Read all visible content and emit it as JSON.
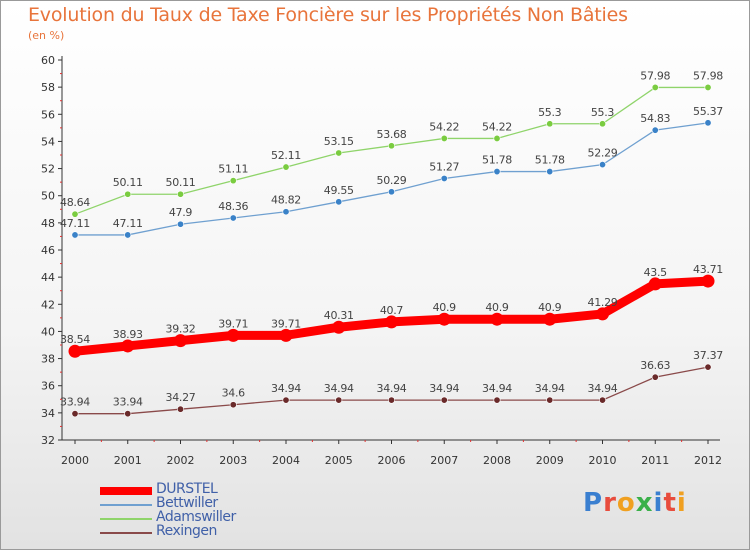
{
  "title": "Evolution du Taux de Taxe Foncière sur les Propriétés Non Bâties",
  "subtitle": "(en %)",
  "logo": {
    "text": "Proxiti",
    "letter_colors": [
      "#3a7fd0",
      "#e84c3d",
      "#f0a020",
      "#3ab04a",
      "#3a7fd0",
      "#e84c3d",
      "#f0a020"
    ]
  },
  "chart_data": {
    "type": "line",
    "x": [
      "2000",
      "2001",
      "2002",
      "2003",
      "2004",
      "2005",
      "2006",
      "2007",
      "2008",
      "2009",
      "2010",
      "2011",
      "2012"
    ],
    "ylim": [
      32,
      60
    ],
    "yticks": [
      32,
      34,
      36,
      38,
      40,
      42,
      44,
      46,
      48,
      50,
      52,
      54,
      56,
      58,
      60
    ],
    "grid": false,
    "legend_position": "bottom-left",
    "series": [
      {
        "name": "DURSTEL",
        "color": "#ff0000",
        "emphasis": true,
        "values": [
          38.54,
          38.93,
          39.32,
          39.71,
          39.71,
          40.31,
          40.7,
          40.9,
          40.9,
          40.9,
          41.29,
          43.5,
          43.71
        ],
        "labels": [
          "38.54",
          "38.93",
          "39.32",
          "39.71",
          "39.71",
          "40.31",
          "40.7",
          "40.9",
          "40.9",
          "40.9",
          "41.29",
          "43.5",
          "43.71"
        ]
      },
      {
        "name": "Bettwiller",
        "color": "#6fa0d0",
        "marker_color": "#3a82c8",
        "values": [
          47.11,
          47.11,
          47.9,
          48.36,
          48.82,
          49.55,
          50.29,
          51.27,
          51.78,
          51.78,
          52.29,
          54.83,
          55.37
        ],
        "labels": [
          "47.11",
          "47.11",
          "47.9",
          "48.36",
          "48.82",
          "49.55",
          "50.29",
          "51.27",
          "51.78",
          "51.78",
          "52.29",
          "54.83",
          "55.37"
        ]
      },
      {
        "name": "Adamswiller",
        "color": "#8fd46a",
        "marker_color": "#7acc40",
        "values": [
          48.64,
          50.11,
          50.11,
          51.11,
          52.11,
          53.15,
          53.68,
          54.22,
          54.22,
          55.3,
          55.3,
          57.98,
          57.98
        ],
        "labels": [
          "48.64",
          "50.11",
          "50.11",
          "51.11",
          "52.11",
          "53.15",
          "53.68",
          "54.22",
          "54.22",
          "55.3",
          "55.3",
          "57.98",
          "57.98"
        ]
      },
      {
        "name": "Rexingen",
        "color": "#8a4a4a",
        "marker_color": "#6a2a2a",
        "values": [
          33.94,
          33.94,
          34.27,
          34.6,
          34.94,
          34.94,
          34.94,
          34.94,
          34.94,
          34.94,
          34.94,
          36.63,
          37.37
        ],
        "labels": [
          "33.94",
          "33.94",
          "34.27",
          "34.6",
          "34.94",
          "34.94",
          "34.94",
          "34.94",
          "34.94",
          "34.94",
          "34.94",
          "36.63",
          "37.37"
        ]
      }
    ]
  }
}
